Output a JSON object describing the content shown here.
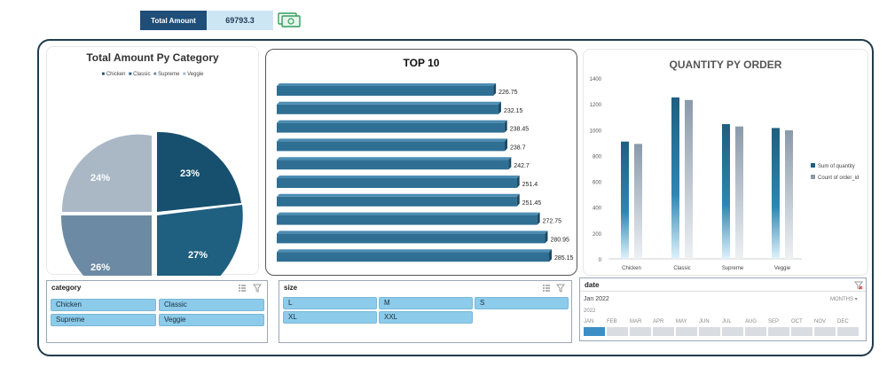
{
  "kpi": {
    "label": "Total Amount",
    "value": "69793.3",
    "icon": "money-icon",
    "icon_color": "#2e9e5b"
  },
  "pie": {
    "title": "Total Amount Py Category",
    "legend": [
      "Chicken",
      "Classic",
      "Supreme",
      "Veggie"
    ],
    "slice_labels": [
      "23%",
      "27%",
      "26%",
      "24%"
    ],
    "colors": [
      "#16506e",
      "#1f5f80",
      "#6c8aa4",
      "#aab8c6"
    ]
  },
  "top10": {
    "title": "TOP 10",
    "values": [
      "226.75",
      "232.15",
      "238.45",
      "238.7",
      "242.7",
      "251.4",
      "251.45",
      "272.75",
      "280.95",
      "285.15"
    ],
    "bar_color": "#2f6f93"
  },
  "qty": {
    "title": "QUANTITY PY ORDER",
    "y_ticks": [
      "1400",
      "1200",
      "1000",
      "800",
      "600",
      "400",
      "200",
      "0"
    ],
    "categories": [
      "Chicken",
      "Classic",
      "Supreme",
      "Veggie"
    ],
    "legend": [
      "Sum of quantity",
      "Count of order_id"
    ],
    "colors": [
      "#1f5f80",
      "#8a9aaa"
    ]
  },
  "chart_data": {
    "type": "bar",
    "title": "QUANTITY PY ORDER",
    "categories": [
      "Chicken",
      "Classic",
      "Supreme",
      "Veggie"
    ],
    "series": [
      {
        "name": "Sum of quantity",
        "values": [
          908,
          1250,
          1043,
          1013
        ]
      },
      {
        "name": "Count of order_id",
        "values": [
          890,
          1230,
          1025,
          995
        ]
      }
    ],
    "ylim": [
      0,
      1400
    ],
    "legend": "right",
    "grid": false
  },
  "category_slicer": {
    "header": "category",
    "items": [
      "Chicken",
      "Classic",
      "Supreme",
      "Veggie"
    ]
  },
  "size_slicer": {
    "header": "size",
    "items": [
      "L",
      "M",
      "S",
      "XL",
      "XXL"
    ]
  },
  "date_slicer": {
    "header": "date",
    "range": "Jan 2022",
    "period": "MONTHS",
    "year": "2022",
    "months": [
      "JAN",
      "FEB",
      "MAR",
      "APR",
      "MAY",
      "JUN",
      "JUL",
      "AUG",
      "SEP",
      "OCT",
      "NOV",
      "DEC"
    ]
  }
}
